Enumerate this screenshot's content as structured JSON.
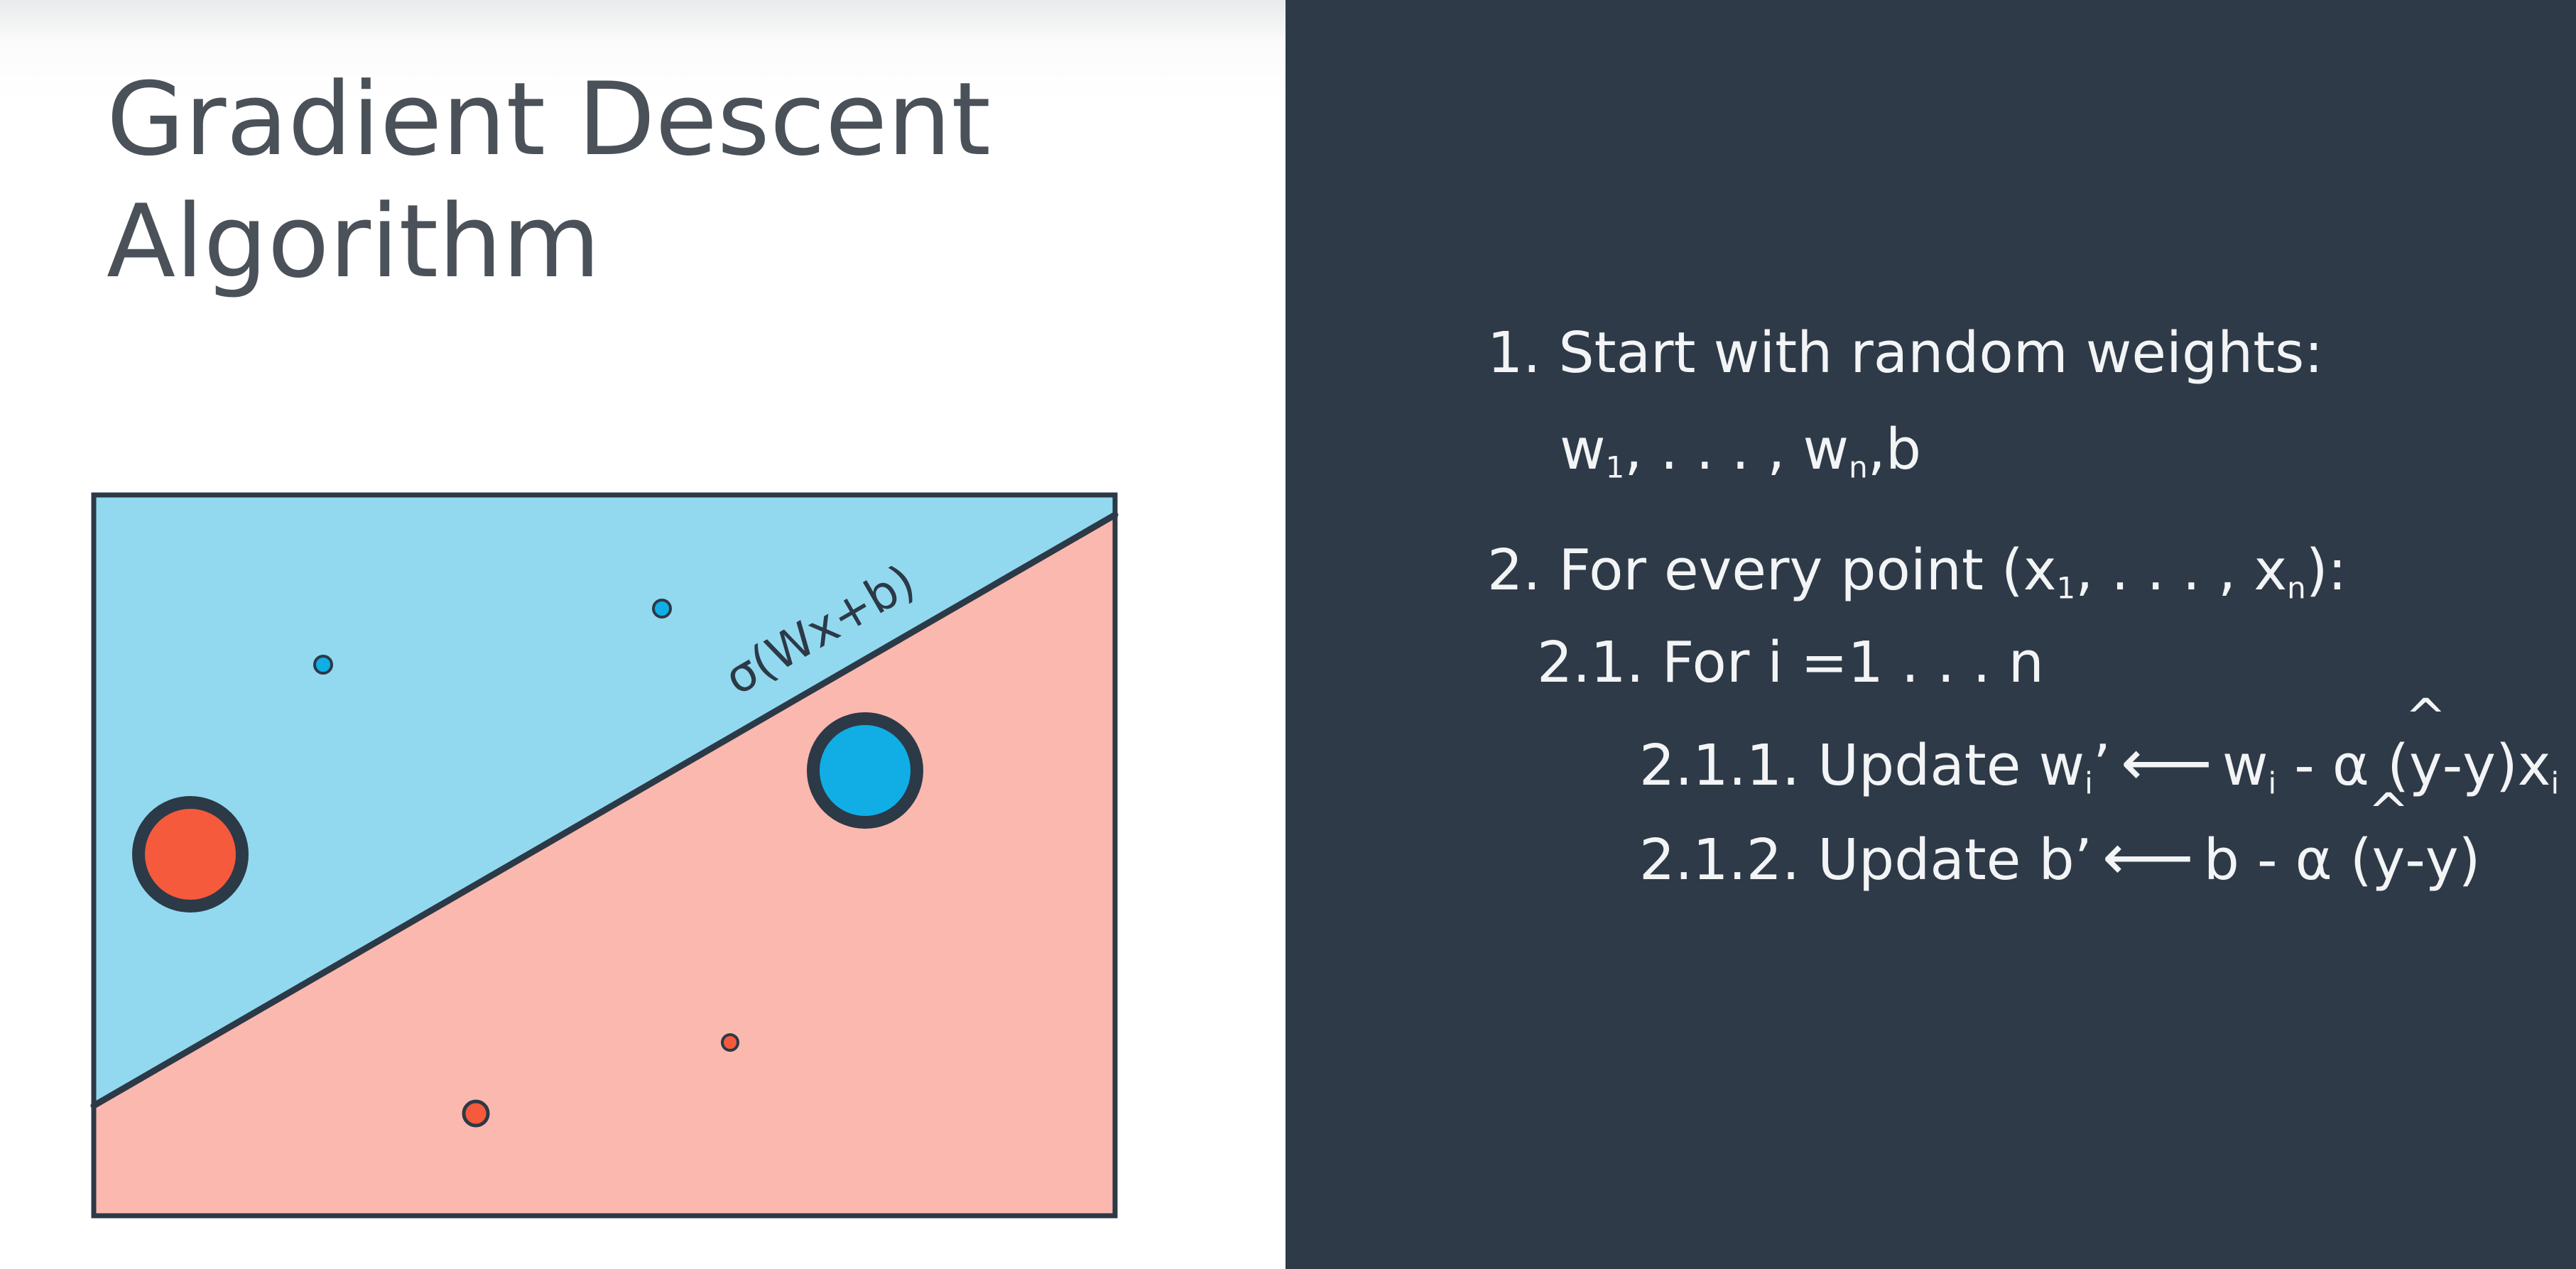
{
  "slide": {
    "title_line_1": "Gradient Descent",
    "title_line_2": "Algorithm"
  },
  "diagram": {
    "boundary_label": "σ(Wx+b)",
    "colors": {
      "blue_region": "#92d9ef",
      "pink_region": "#fbb8ae",
      "outline": "#2c3947",
      "blue_point": "#10aee5",
      "red_point": "#f55a3c",
      "panel_background": "#2e3a47",
      "slide_text": "#4b5158"
    },
    "points": [
      {
        "region": "blue",
        "size": "small"
      },
      {
        "region": "blue",
        "size": "small"
      },
      {
        "region": "blue",
        "size": "large",
        "misclassified": true
      },
      {
        "region": "pink",
        "size": "large",
        "misclassified": true
      },
      {
        "region": "pink",
        "size": "small"
      },
      {
        "region": "pink",
        "size": "small"
      }
    ]
  },
  "algorithm": {
    "step1": {
      "label": "1. Start with random weights:",
      "weights": {
        "w": "w",
        "sub_1": "1",
        "sep": ", . . . , ",
        "sub_n": "n",
        "b": ",b"
      }
    },
    "step2": {
      "prefix": "2. For every point (x",
      "sub_1": "1",
      "sep": ", . . . , x",
      "sub_n": "n",
      "suffix": "):"
    },
    "step21": {
      "label": "2.1. For i =1 . . . n"
    },
    "step211": {
      "label": "2.1.1. Update w",
      "sub_i": "i",
      "prime": "’",
      "arrow": "⟵",
      "rhs_w": "w",
      "rhs_sub_i": "i",
      "rhs_mid": " - α (",
      "y_hat": "y",
      "hat": "^",
      "rhs_tail": "-y)x",
      "rhs_sub_i2": "i"
    },
    "step212": {
      "label": "2.1.2. Update b’",
      "arrow": "⟵",
      "rhs_mid": "b - α (",
      "y_hat": "y",
      "hat": "^",
      "rhs_tail": "-y)"
    }
  }
}
